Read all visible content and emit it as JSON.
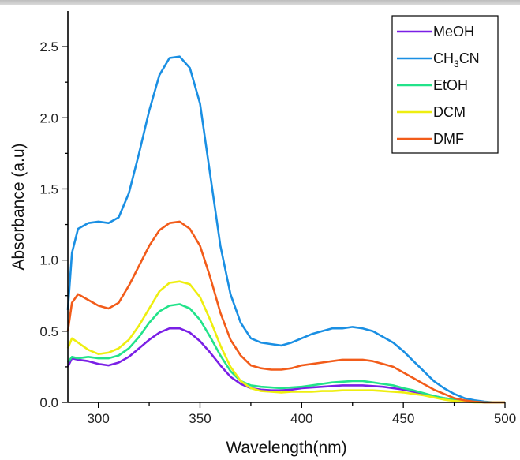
{
  "chart_data": {
    "type": "line",
    "xlabel": "Wavelength(nm)",
    "ylabel": "Absorbance (a.u)",
    "xlim": [
      285,
      500
    ],
    "ylim": [
      0.0,
      2.75
    ],
    "xticks": [
      300,
      350,
      400,
      450,
      500
    ],
    "yticks": [
      0.0,
      0.5,
      1.0,
      1.5,
      2.0,
      2.5
    ],
    "xtick_labels": [
      "300",
      "350",
      "400",
      "450",
      "500"
    ],
    "ytick_labels": [
      "0.0",
      "0.5",
      "1.0",
      "1.5",
      "2.0",
      "2.5"
    ],
    "grid": false,
    "legend_position": "top-right",
    "x": [
      285,
      287,
      290,
      295,
      300,
      305,
      310,
      315,
      320,
      325,
      330,
      335,
      340,
      345,
      350,
      355,
      360,
      365,
      370,
      375,
      380,
      385,
      390,
      395,
      400,
      405,
      410,
      415,
      420,
      425,
      430,
      435,
      440,
      445,
      450,
      455,
      460,
      465,
      470,
      475,
      480,
      485,
      490,
      495,
      500
    ],
    "series": [
      {
        "name": "MeOH",
        "color": "#7a1fe6",
        "values": [
          0.25,
          0.31,
          0.3,
          0.29,
          0.27,
          0.26,
          0.28,
          0.32,
          0.38,
          0.44,
          0.49,
          0.52,
          0.52,
          0.49,
          0.43,
          0.35,
          0.26,
          0.18,
          0.13,
          0.1,
          0.09,
          0.085,
          0.085,
          0.09,
          0.1,
          0.105,
          0.11,
          0.115,
          0.12,
          0.12,
          0.12,
          0.115,
          0.11,
          0.1,
          0.09,
          0.075,
          0.06,
          0.045,
          0.03,
          0.02,
          0.01,
          0.005,
          0.0,
          0.0,
          0.0
        ]
      },
      {
        "name": "CH3CN",
        "color": "#1a8fe3",
        "values": [
          0.65,
          1.05,
          1.22,
          1.26,
          1.27,
          1.26,
          1.3,
          1.47,
          1.75,
          2.05,
          2.3,
          2.42,
          2.43,
          2.35,
          2.1,
          1.6,
          1.1,
          0.76,
          0.56,
          0.45,
          0.42,
          0.41,
          0.4,
          0.42,
          0.45,
          0.48,
          0.5,
          0.52,
          0.52,
          0.53,
          0.52,
          0.5,
          0.46,
          0.42,
          0.36,
          0.29,
          0.22,
          0.15,
          0.1,
          0.06,
          0.03,
          0.015,
          0.005,
          0.0,
          0.0
        ]
      },
      {
        "name": "EtOH",
        "color": "#22e38a",
        "values": [
          0.28,
          0.32,
          0.31,
          0.32,
          0.31,
          0.31,
          0.33,
          0.38,
          0.46,
          0.56,
          0.64,
          0.68,
          0.69,
          0.66,
          0.58,
          0.46,
          0.33,
          0.22,
          0.15,
          0.12,
          0.11,
          0.105,
          0.1,
          0.105,
          0.11,
          0.12,
          0.13,
          0.14,
          0.145,
          0.15,
          0.15,
          0.14,
          0.13,
          0.12,
          0.1,
          0.085,
          0.065,
          0.045,
          0.03,
          0.02,
          0.01,
          0.005,
          0.0,
          0.0,
          0.0
        ]
      },
      {
        "name": "DCM",
        "color": "#eeee10",
        "values": [
          0.38,
          0.45,
          0.42,
          0.37,
          0.34,
          0.35,
          0.38,
          0.44,
          0.54,
          0.66,
          0.78,
          0.84,
          0.85,
          0.83,
          0.74,
          0.58,
          0.4,
          0.25,
          0.15,
          0.1,
          0.08,
          0.075,
          0.07,
          0.075,
          0.075,
          0.075,
          0.08,
          0.08,
          0.085,
          0.085,
          0.085,
          0.085,
          0.08,
          0.075,
          0.07,
          0.06,
          0.05,
          0.035,
          0.02,
          0.01,
          0.005,
          0.0,
          0.0,
          0.0,
          0.0
        ]
      },
      {
        "name": "DMF",
        "color": "#f25c1a",
        "values": [
          0.5,
          0.7,
          0.76,
          0.72,
          0.68,
          0.66,
          0.7,
          0.82,
          0.96,
          1.1,
          1.21,
          1.26,
          1.27,
          1.22,
          1.1,
          0.88,
          0.63,
          0.44,
          0.33,
          0.26,
          0.24,
          0.23,
          0.23,
          0.24,
          0.26,
          0.27,
          0.28,
          0.29,
          0.3,
          0.3,
          0.3,
          0.29,
          0.27,
          0.25,
          0.21,
          0.17,
          0.13,
          0.09,
          0.06,
          0.03,
          0.015,
          0.005,
          0.0,
          0.0,
          0.0
        ]
      }
    ]
  }
}
